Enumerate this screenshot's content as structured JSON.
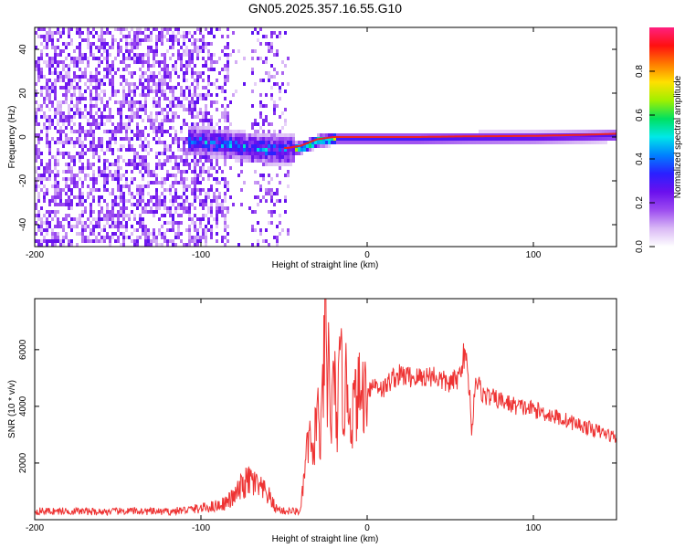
{
  "figure_title": "GN05.2025.357.16.55.G10",
  "colors": {
    "snr_line": "#ee3333",
    "ridge": "#ee2222",
    "axis": "#000000"
  },
  "chart_data": [
    {
      "type": "heatmap",
      "xlabel": "Height of straight line (km)",
      "ylabel": "Frequency (Hz)",
      "xlim": [
        -200,
        150
      ],
      "ylim": [
        -50,
        50
      ],
      "x_ticks": [
        "-200",
        "-100",
        "0",
        "100"
      ],
      "y_ticks": [
        "-40",
        "-20",
        "0",
        "20",
        "40"
      ],
      "colorbar": {
        "label": "Normalized spectral amplitude",
        "range": [
          0,
          1
        ],
        "ticks": [
          "0.0",
          "0.2",
          "0.4",
          "0.6",
          "0.8"
        ],
        "colormap": [
          "#ffffff",
          "#d9b8f5",
          "#9d4cf0",
          "#6a10ee",
          "#2a20ff",
          "#0080ff",
          "#00e8e8",
          "#00e060",
          "#a0f000",
          "#ffe000",
          "#ff7a00",
          "#ff1010",
          "#ff2080"
        ]
      },
      "ridge": {
        "x": [
          -105,
          -80,
          -60,
          -48,
          -40,
          -30,
          -20,
          -10,
          0,
          10,
          30,
          60,
          100,
          130,
          150
        ],
        "y": [
          -1,
          -3,
          -5,
          -5,
          -4,
          -1,
          0,
          0,
          0,
          0,
          0,
          0.3,
          0.5,
          1,
          1.5
        ]
      }
    },
    {
      "type": "line",
      "xlabel": "Height of straight line (km)",
      "ylabel": "SNR (10 * v/v)",
      "xlim": [
        -200,
        150
      ],
      "ylim": [
        0,
        7800
      ],
      "x_ticks": [
        "-200",
        "-100",
        "0",
        "100"
      ],
      "y_ticks": [
        "2000",
        "4000",
        "6000"
      ],
      "series": [
        {
          "x": [
            -200,
            -180,
            -160,
            -140,
            -120,
            -100,
            -90,
            -85,
            -80,
            -75,
            -70,
            -65,
            -60,
            -55,
            -50,
            -45,
            -40,
            -38,
            -35,
            -33,
            -30,
            -28,
            -26,
            -25,
            -24,
            -23,
            -22,
            -20,
            -18,
            -16,
            -14,
            -12,
            -10,
            -8,
            -5,
            -2,
            0,
            5,
            10,
            15,
            20,
            30,
            40,
            45,
            50,
            55,
            58,
            60,
            62,
            63,
            65,
            70,
            80,
            90,
            100,
            110,
            120,
            130,
            140,
            150
          ],
          "y": [
            300,
            300,
            280,
            300,
            280,
            400,
            500,
            600,
            800,
            1200,
            1400,
            1100,
            900,
            400,
            300,
            300,
            300,
            1500,
            3000,
            2000,
            4000,
            2500,
            5500,
            7700,
            3500,
            6500,
            3000,
            5000,
            3500,
            5500,
            4000,
            5000,
            3500,
            4000,
            4400,
            4500,
            4600,
            4800,
            4600,
            5000,
            5100,
            5000,
            5100,
            4900,
            4800,
            5000,
            5800,
            5500,
            4200,
            3000,
            5000,
            4400,
            4200,
            4000,
            3900,
            3700,
            3500,
            3300,
            3100,
            2900
          ]
        }
      ]
    }
  ]
}
